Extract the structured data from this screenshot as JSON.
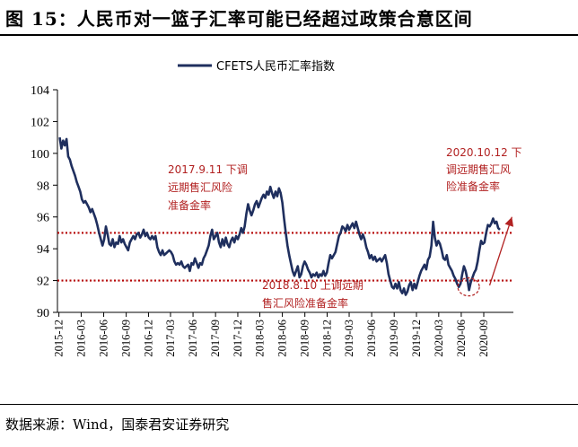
{
  "title": "图 15：人民币对一篮子汇率可能已经超过政策合意区间",
  "source": "数据来源：Wind，国泰君安证券研究",
  "chart_data": {
    "type": "line",
    "series": [
      {
        "name": "CFETS人民币汇率指数",
        "color": "#1f2f5e",
        "points": [
          [
            "2015-12-04",
            101.0
          ],
          [
            "2015-12-11",
            100.3
          ],
          [
            "2015-12-18",
            100.8
          ],
          [
            "2015-12-25",
            100.5
          ],
          [
            "2016-01-01",
            100.9
          ],
          [
            "2016-01-08",
            99.8
          ],
          [
            "2016-01-15",
            99.6
          ],
          [
            "2016-01-22",
            99.2
          ],
          [
            "2016-01-29",
            98.9
          ],
          [
            "2016-02-05",
            98.6
          ],
          [
            "2016-02-12",
            98.2
          ],
          [
            "2016-02-19",
            97.9
          ],
          [
            "2016-02-26",
            97.6
          ],
          [
            "2016-03-04",
            97.1
          ],
          [
            "2016-03-11",
            96.9
          ],
          [
            "2016-03-18",
            97.0
          ],
          [
            "2016-03-25",
            96.8
          ],
          [
            "2016-04-01",
            96.6
          ],
          [
            "2016-04-08",
            96.3
          ],
          [
            "2016-04-15",
            96.5
          ],
          [
            "2016-04-22",
            96.2
          ],
          [
            "2016-04-29",
            95.9
          ],
          [
            "2016-05-06",
            95.5
          ],
          [
            "2016-05-13",
            95.0
          ],
          [
            "2016-05-20",
            94.6
          ],
          [
            "2016-05-27",
            94.2
          ],
          [
            "2016-06-03",
            94.6
          ],
          [
            "2016-06-10",
            95.4
          ],
          [
            "2016-06-17",
            94.9
          ],
          [
            "2016-06-24",
            94.3
          ],
          [
            "2016-07-01",
            94.2
          ],
          [
            "2016-07-08",
            94.6
          ],
          [
            "2016-07-15",
            94.1
          ],
          [
            "2016-07-22",
            94.4
          ],
          [
            "2016-07-29",
            94.3
          ],
          [
            "2016-08-05",
            94.8
          ],
          [
            "2016-08-12",
            94.4
          ],
          [
            "2016-08-19",
            94.6
          ],
          [
            "2016-08-26",
            94.3
          ],
          [
            "2016-09-02",
            94.1
          ],
          [
            "2016-09-09",
            93.9
          ],
          [
            "2016-09-16",
            94.4
          ],
          [
            "2016-09-23",
            94.6
          ],
          [
            "2016-09-30",
            94.8
          ],
          [
            "2016-10-07",
            94.6
          ],
          [
            "2016-10-14",
            94.9
          ],
          [
            "2016-10-21",
            95.0
          ],
          [
            "2016-10-28",
            94.7
          ],
          [
            "2016-11-04",
            94.9
          ],
          [
            "2016-11-11",
            95.2
          ],
          [
            "2016-11-18",
            94.8
          ],
          [
            "2016-11-25",
            95.0
          ],
          [
            "2016-12-02",
            94.7
          ],
          [
            "2016-12-09",
            94.6
          ],
          [
            "2016-12-16",
            94.8
          ],
          [
            "2016-12-23",
            94.6
          ],
          [
            "2016-12-30",
            94.8
          ],
          [
            "2017-01-06",
            94.1
          ],
          [
            "2017-01-13",
            93.8
          ],
          [
            "2017-01-20",
            93.6
          ],
          [
            "2017-01-27",
            93.9
          ],
          [
            "2017-02-03",
            93.6
          ],
          [
            "2017-02-10",
            93.7
          ],
          [
            "2017-02-17",
            93.8
          ],
          [
            "2017-02-24",
            93.9
          ],
          [
            "2017-03-03",
            93.8
          ],
          [
            "2017-03-10",
            93.6
          ],
          [
            "2017-03-17",
            93.2
          ],
          [
            "2017-03-24",
            93.0
          ],
          [
            "2017-03-31",
            93.1
          ],
          [
            "2017-04-07",
            93.0
          ],
          [
            "2017-04-14",
            93.2
          ],
          [
            "2017-04-21",
            92.9
          ],
          [
            "2017-04-28",
            92.8
          ],
          [
            "2017-05-05",
            92.9
          ],
          [
            "2017-05-12",
            93.0
          ],
          [
            "2017-05-19",
            92.6
          ],
          [
            "2017-05-26",
            93.1
          ],
          [
            "2017-06-02",
            93.0
          ],
          [
            "2017-06-09",
            93.4
          ],
          [
            "2017-06-16",
            93.1
          ],
          [
            "2017-06-23",
            92.8
          ],
          [
            "2017-06-30",
            93.1
          ],
          [
            "2017-07-07",
            93.0
          ],
          [
            "2017-07-14",
            93.4
          ],
          [
            "2017-07-21",
            93.6
          ],
          [
            "2017-07-28",
            93.9
          ],
          [
            "2017-08-04",
            94.2
          ],
          [
            "2017-08-11",
            94.8
          ],
          [
            "2017-08-18",
            95.2
          ],
          [
            "2017-08-25",
            94.6
          ],
          [
            "2017-09-01",
            94.8
          ],
          [
            "2017-09-08",
            95.0
          ],
          [
            "2017-09-15",
            94.4
          ],
          [
            "2017-09-22",
            94.1
          ],
          [
            "2017-09-29",
            94.6
          ],
          [
            "2017-10-06",
            94.2
          ],
          [
            "2017-10-13",
            94.7
          ],
          [
            "2017-10-20",
            94.3
          ],
          [
            "2017-10-27",
            94.1
          ],
          [
            "2017-11-03",
            94.5
          ],
          [
            "2017-11-10",
            94.7
          ],
          [
            "2017-11-17",
            94.4
          ],
          [
            "2017-11-24",
            94.8
          ],
          [
            "2017-12-01",
            94.6
          ],
          [
            "2017-12-08",
            94.9
          ],
          [
            "2017-12-15",
            95.3
          ],
          [
            "2017-12-22",
            95.0
          ],
          [
            "2017-12-29",
            95.4
          ],
          [
            "2018-01-05",
            96.2
          ],
          [
            "2018-01-12",
            96.8
          ],
          [
            "2018-01-19",
            96.4
          ],
          [
            "2018-01-26",
            96.1
          ],
          [
            "2018-02-02",
            96.4
          ],
          [
            "2018-02-09",
            96.8
          ],
          [
            "2018-02-16",
            97.0
          ],
          [
            "2018-02-23",
            96.6
          ],
          [
            "2018-03-02",
            96.9
          ],
          [
            "2018-03-09",
            97.2
          ],
          [
            "2018-03-16",
            97.4
          ],
          [
            "2018-03-23",
            97.2
          ],
          [
            "2018-03-30",
            97.6
          ],
          [
            "2018-04-06",
            97.4
          ],
          [
            "2018-04-13",
            97.9
          ],
          [
            "2018-04-20",
            97.5
          ],
          [
            "2018-04-27",
            97.2
          ],
          [
            "2018-05-04",
            97.6
          ],
          [
            "2018-05-11",
            97.3
          ],
          [
            "2018-05-18",
            97.8
          ],
          [
            "2018-05-25",
            97.5
          ],
          [
            "2018-06-01",
            96.9
          ],
          [
            "2018-06-08",
            95.9
          ],
          [
            "2018-06-15",
            95.0
          ],
          [
            "2018-06-22",
            94.2
          ],
          [
            "2018-06-29",
            93.6
          ],
          [
            "2018-07-06",
            93.1
          ],
          [
            "2018-07-13",
            92.6
          ],
          [
            "2018-07-20",
            92.3
          ],
          [
            "2018-07-27",
            92.6
          ],
          [
            "2018-08-03",
            92.9
          ],
          [
            "2018-08-10",
            92.2
          ],
          [
            "2018-08-17",
            92.4
          ],
          [
            "2018-08-24",
            92.9
          ],
          [
            "2018-08-31",
            93.2
          ],
          [
            "2018-09-07",
            93.0
          ],
          [
            "2018-09-14",
            92.7
          ],
          [
            "2018-09-21",
            92.5
          ],
          [
            "2018-09-28",
            92.2
          ],
          [
            "2018-10-05",
            92.4
          ],
          [
            "2018-10-12",
            92.3
          ],
          [
            "2018-10-19",
            92.5
          ],
          [
            "2018-10-26",
            92.2
          ],
          [
            "2018-11-02",
            92.4
          ],
          [
            "2018-11-09",
            92.3
          ],
          [
            "2018-11-16",
            92.6
          ],
          [
            "2018-11-23",
            92.3
          ],
          [
            "2018-11-30",
            92.5
          ],
          [
            "2018-12-07",
            93.1
          ],
          [
            "2018-12-14",
            93.6
          ],
          [
            "2018-12-21",
            93.4
          ],
          [
            "2018-12-28",
            93.6
          ],
          [
            "2019-01-04",
            93.8
          ],
          [
            "2019-01-11",
            94.3
          ],
          [
            "2019-01-18",
            94.8
          ],
          [
            "2019-01-25",
            95.0
          ],
          [
            "2019-02-01",
            95.4
          ],
          [
            "2019-02-08",
            95.3
          ],
          [
            "2019-02-15",
            95.1
          ],
          [
            "2019-02-22",
            95.5
          ],
          [
            "2019-03-01",
            95.2
          ],
          [
            "2019-03-08",
            95.4
          ],
          [
            "2019-03-15",
            95.6
          ],
          [
            "2019-03-22",
            95.3
          ],
          [
            "2019-03-29",
            95.7
          ],
          [
            "2019-04-05",
            95.3
          ],
          [
            "2019-04-12",
            94.9
          ],
          [
            "2019-04-19",
            94.6
          ],
          [
            "2019-04-26",
            94.9
          ],
          [
            "2019-05-03",
            94.6
          ],
          [
            "2019-05-10",
            94.1
          ],
          [
            "2019-05-17",
            93.8
          ],
          [
            "2019-05-24",
            93.4
          ],
          [
            "2019-05-31",
            93.6
          ],
          [
            "2019-06-07",
            93.3
          ],
          [
            "2019-06-14",
            93.5
          ],
          [
            "2019-06-21",
            93.2
          ],
          [
            "2019-06-28",
            93.3
          ],
          [
            "2019-07-05",
            93.4
          ],
          [
            "2019-07-12",
            93.2
          ],
          [
            "2019-07-19",
            93.4
          ],
          [
            "2019-07-26",
            93.6
          ],
          [
            "2019-08-02",
            93.1
          ],
          [
            "2019-08-09",
            92.4
          ],
          [
            "2019-08-16",
            92.0
          ],
          [
            "2019-08-23",
            91.6
          ],
          [
            "2019-08-30",
            91.5
          ],
          [
            "2019-09-06",
            91.8
          ],
          [
            "2019-09-13",
            91.5
          ],
          [
            "2019-09-20",
            91.9
          ],
          [
            "2019-09-27",
            91.4
          ],
          [
            "2019-10-04",
            91.2
          ],
          [
            "2019-10-11",
            91.5
          ],
          [
            "2019-10-18",
            91.1
          ],
          [
            "2019-10-25",
            91.3
          ],
          [
            "2019-11-01",
            91.7
          ],
          [
            "2019-11-08",
            91.9
          ],
          [
            "2019-11-15",
            91.4
          ],
          [
            "2019-11-22",
            91.8
          ],
          [
            "2019-11-29",
            91.5
          ],
          [
            "2019-12-06",
            91.9
          ],
          [
            "2019-12-13",
            92.3
          ],
          [
            "2019-12-20",
            92.6
          ],
          [
            "2019-12-27",
            92.8
          ],
          [
            "2020-01-03",
            93.0
          ],
          [
            "2020-01-10",
            92.7
          ],
          [
            "2020-01-17",
            93.3
          ],
          [
            "2020-01-24",
            93.5
          ],
          [
            "2020-01-31",
            94.2
          ],
          [
            "2020-02-07",
            95.7
          ],
          [
            "2020-02-14",
            94.7
          ],
          [
            "2020-02-21",
            94.2
          ],
          [
            "2020-02-28",
            94.5
          ],
          [
            "2020-03-06",
            94.3
          ],
          [
            "2020-03-13",
            93.9
          ],
          [
            "2020-03-20",
            93.4
          ],
          [
            "2020-03-27",
            93.3
          ],
          [
            "2020-04-03",
            93.6
          ],
          [
            "2020-04-10",
            93.0
          ],
          [
            "2020-04-17",
            92.8
          ],
          [
            "2020-04-24",
            92.6
          ],
          [
            "2020-05-01",
            92.3
          ],
          [
            "2020-05-08",
            92.1
          ],
          [
            "2020-05-15",
            91.8
          ],
          [
            "2020-05-22",
            91.6
          ],
          [
            "2020-05-29",
            91.8
          ],
          [
            "2020-06-05",
            92.4
          ],
          [
            "2020-06-12",
            92.9
          ],
          [
            "2020-06-19",
            92.6
          ],
          [
            "2020-06-26",
            92.1
          ],
          [
            "2020-07-03",
            91.4
          ],
          [
            "2020-07-10",
            91.9
          ],
          [
            "2020-07-17",
            92.2
          ],
          [
            "2020-07-24",
            92.5
          ],
          [
            "2020-07-31",
            92.7
          ],
          [
            "2020-08-07",
            93.2
          ],
          [
            "2020-08-14",
            93.9
          ],
          [
            "2020-08-21",
            94.5
          ],
          [
            "2020-08-28",
            94.3
          ],
          [
            "2020-09-04",
            94.4
          ],
          [
            "2020-09-11",
            95.0
          ],
          [
            "2020-09-18",
            95.5
          ],
          [
            "2020-09-25",
            95.4
          ],
          [
            "2020-10-02",
            95.6
          ],
          [
            "2020-10-09",
            95.9
          ],
          [
            "2020-10-16",
            95.6
          ],
          [
            "2020-10-23",
            95.7
          ],
          [
            "2020-10-30",
            95.3
          ],
          [
            "2020-11-06",
            95.2
          ]
        ]
      }
    ],
    "title": "",
    "xlabel": "",
    "ylabel": "",
    "ylim": [
      90,
      104
    ],
    "yticks": [
      90,
      92,
      94,
      96,
      98,
      100,
      102,
      104
    ],
    "xlim": [
      "2015-11-25",
      "2020-12-31"
    ],
    "xticks": [
      "2015-12",
      "2016-03",
      "2016-06",
      "2016-09",
      "2016-12",
      "2017-03",
      "2017-06",
      "2017-09",
      "2017-12",
      "2018-03",
      "2018-06",
      "2018-09",
      "2018-12",
      "2019-03",
      "2019-06",
      "2019-09",
      "2019-12",
      "2020-03",
      "2020-06",
      "2020-09"
    ],
    "legend": "top-center",
    "grid": false,
    "reference_lines": [
      {
        "y": 95.0,
        "style": "dotted",
        "color": "#b30000"
      },
      {
        "y": 92.0,
        "style": "dotted",
        "color": "#b30000"
      }
    ],
    "annotations": [
      {
        "lines": [
          "2017.9.11 下调",
          "远期售汇风险",
          "准备金率"
        ],
        "color": "#b22222"
      },
      {
        "lines": [
          "2018.8.10 上调远期",
          "售汇风险准备金率"
        ],
        "color": "#b22222"
      },
      {
        "lines": [
          "2020.10.12 下",
          "调远期售汇风",
          "险准备金率"
        ],
        "color": "#b22222"
      }
    ],
    "markers": [
      {
        "type": "dashed-circle",
        "x": "2020-07-01",
        "y": 91.6,
        "color": "#b22222"
      },
      {
        "type": "arrow",
        "from": [
          "2020-09-25",
          91.7
        ],
        "to": [
          "2020-12-25",
          96.0
        ],
        "color": "#b22222"
      }
    ]
  }
}
